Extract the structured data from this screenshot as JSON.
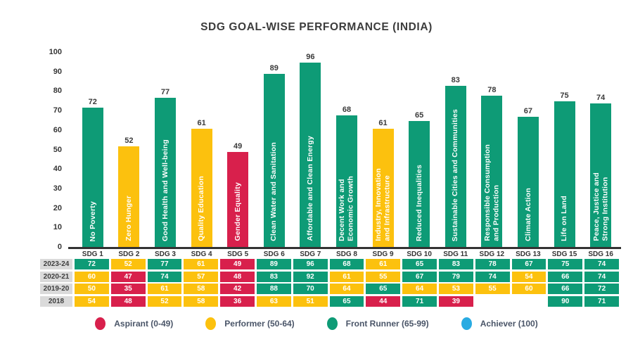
{
  "title": "SDG GOAL-WISE PERFORMANCE (INDIA)",
  "colors": {
    "aspirant": "#D8204C",
    "performer": "#FCC10E",
    "front_runner": "#0E9B76",
    "achiever": "#29ABE2",
    "axis_text": "#353535",
    "baseline": "#333333",
    "row_header_bg": "#DADADA",
    "legend_text": "#4A5568"
  },
  "chart_data": {
    "type": "bar",
    "title": "SDG GOAL-WISE PERFORMANCE (INDIA)",
    "xlabel": "",
    "ylabel": "",
    "ylim": [
      0,
      100
    ],
    "y_ticks": [
      0,
      10,
      20,
      30,
      40,
      50,
      60,
      70,
      80,
      90,
      100
    ],
    "grid": false,
    "legend_position": "bottom",
    "categories": [
      "SDG 1",
      "SDG 2",
      "SDG 3",
      "SDG 4",
      "SDG 5",
      "SDG 6",
      "SDG 7",
      "SDG 8",
      "SDG 9",
      "SDG 10",
      "SDG 11",
      "SDG 12",
      "SDG 13",
      "SDG 15",
      "SDG 16"
    ],
    "bar_labels": [
      "No Poverty",
      "Zero Hunger",
      "Good Health and Well-being",
      "Quality Education",
      "Gender Equality",
      "Clean Water and Sanitation",
      "Affordable and Clean Energy",
      "Decent Work and\nEconomic Growth",
      "Industry, Innovation\nand Infrastructure",
      "Reduced Inequalities",
      "Sustainable Cities and Communities",
      "Responsible Consumption\nand Production",
      "Climate Action",
      "Life on Land",
      "Peace, Justice and\nStrong Institution"
    ],
    "values": [
      72,
      52,
      77,
      61,
      49,
      89,
      96,
      68,
      61,
      65,
      83,
      78,
      67,
      75,
      74
    ],
    "series": [
      {
        "name": "2023-24",
        "values": [
          72,
          52,
          77,
          61,
          49,
          89,
          96,
          68,
          61,
          65,
          83,
          78,
          67,
          75,
          74
        ]
      },
      {
        "name": "2020-21",
        "values": [
          60,
          47,
          74,
          57,
          48,
          83,
          92,
          61,
          55,
          67,
          79,
          74,
          54,
          66,
          74
        ]
      },
      {
        "name": "2019-20",
        "values": [
          50,
          35,
          61,
          58,
          42,
          88,
          70,
          64,
          65,
          64,
          53,
          55,
          60,
          66,
          72
        ]
      },
      {
        "name": "2018",
        "values": [
          54,
          48,
          52,
          58,
          36,
          63,
          51,
          65,
          44,
          71,
          39,
          null,
          null,
          90,
          71
        ]
      }
    ],
    "bands": [
      {
        "key": "aspirant",
        "label": "Aspirant (0-49)",
        "min": 0,
        "max": 49
      },
      {
        "key": "performer",
        "label": "Performer (50-64)",
        "min": 50,
        "max": 64
      },
      {
        "key": "front_runner",
        "label": "Front Runner (65-99)",
        "min": 65,
        "max": 99
      },
      {
        "key": "achiever",
        "label": "Achiever (100)",
        "min": 100,
        "max": 100
      }
    ]
  }
}
